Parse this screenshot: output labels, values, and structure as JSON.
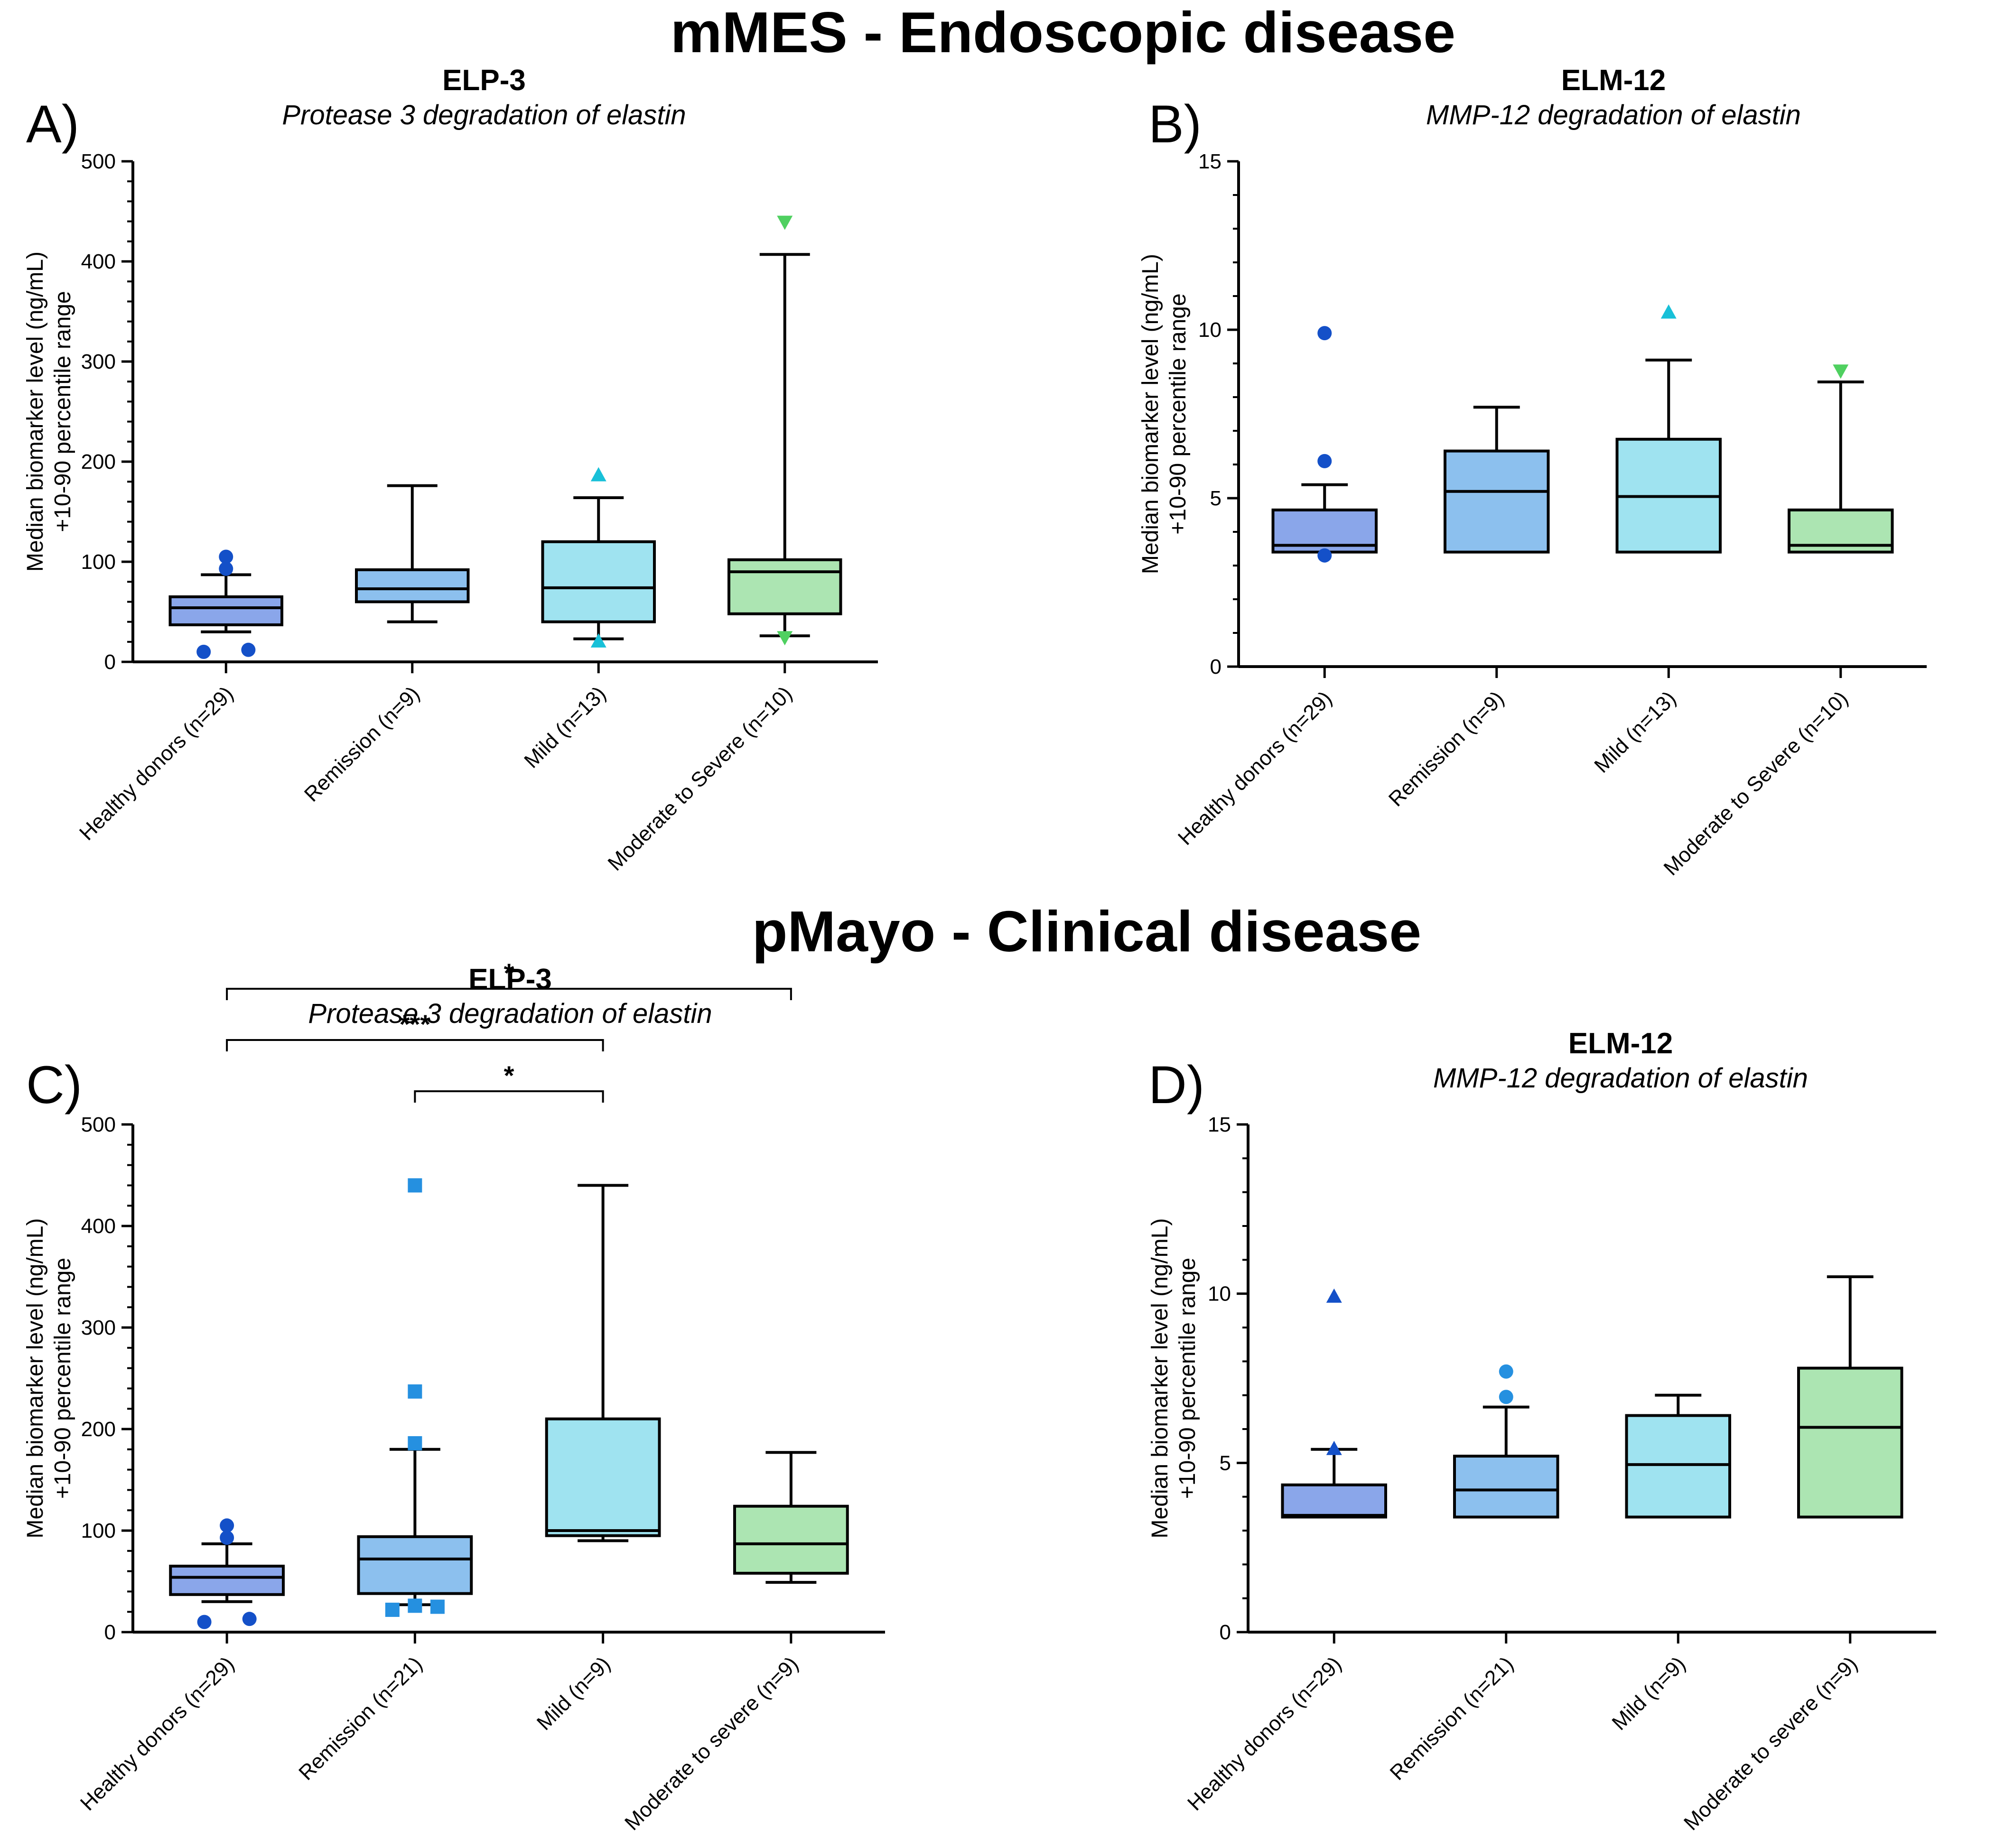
{
  "sections": [
    {
      "title": "mMES - Endoscopic disease"
    },
    {
      "title": "pMayo - Clinical disease"
    }
  ],
  "colors": {
    "healthy": "#8aa6ea",
    "remission": "#8cc0ee",
    "mild": "#9fe3f0",
    "severe": "#ace5b2",
    "dark_blue": "#1450c8",
    "mid_blue": "#2590e0",
    "cyan": "#18c0d8",
    "green": "#4fd060"
  },
  "chart_data": [
    {
      "label": "A)",
      "type": "box",
      "title": "ELP-3",
      "subtitle": "Protease 3 degradation of elastin",
      "ylabel": [
        "Median biomarker level  (ng/mL)",
        "+10-90 percentile range"
      ],
      "ylim": [
        0,
        500
      ],
      "yticks": [
        0,
        100,
        200,
        300,
        400,
        500
      ],
      "categories": [
        "Healthy donors (n=29)",
        "Remission (n=9)",
        "Mild (n=13)",
        "Moderate to Severe (n=10)"
      ],
      "boxes": [
        {
          "color": "healthy",
          "p10": 30,
          "q1": 37,
          "median": 54,
          "q3": 65,
          "p90": 87,
          "outliers": [
            {
              "v": 105,
              "shape": "circle",
              "color": "dark_blue"
            },
            {
              "v": 93,
              "shape": "circle",
              "color": "dark_blue"
            },
            {
              "v": 10,
              "shape": "circle",
              "color": "dark_blue",
              "dx": -0.4
            },
            {
              "v": 12,
              "shape": "circle",
              "color": "dark_blue",
              "dx": 0.4
            }
          ]
        },
        {
          "color": "remission",
          "p10": 40,
          "q1": 60,
          "median": 73,
          "q3": 92,
          "p90": 176,
          "outliers": []
        },
        {
          "color": "mild",
          "p10": 23,
          "q1": 40,
          "median": 74,
          "q3": 120,
          "p90": 164,
          "outliers": [
            {
              "v": 186,
              "shape": "triangle-up",
              "color": "cyan"
            },
            {
              "v": 20,
              "shape": "triangle-up",
              "color": "cyan"
            }
          ]
        },
        {
          "color": "severe",
          "p10": 26,
          "q1": 48,
          "median": 90,
          "q3": 102,
          "p90": 407,
          "outliers": [
            {
              "v": 440,
              "shape": "triangle-down",
              "color": "green"
            },
            {
              "v": 25,
              "shape": "triangle-down",
              "color": "green"
            }
          ]
        }
      ],
      "brackets": []
    },
    {
      "label": "B)",
      "type": "box",
      "title": "ELM-12",
      "subtitle": "MMP-12 degradation of elastin",
      "ylabel": [
        "Median biomarker level  (ng/mL)",
        "+10-90 percentile range"
      ],
      "ylim": [
        0,
        15
      ],
      "yticks": [
        0,
        5,
        10,
        15
      ],
      "categories": [
        "Healthy donors (n=29)",
        "Remission (n=9)",
        "Mild (n=13)",
        "Moderate to Severe (n=10)"
      ],
      "boxes": [
        {
          "color": "healthy",
          "p10": 3.4,
          "q1": 3.4,
          "median": 3.6,
          "q3": 4.65,
          "p90": 5.4,
          "outliers": [
            {
              "v": 9.9,
              "shape": "circle",
              "color": "dark_blue"
            },
            {
              "v": 6.1,
              "shape": "circle",
              "color": "dark_blue"
            },
            {
              "v": 3.3,
              "shape": "circle",
              "color": "dark_blue"
            }
          ]
        },
        {
          "color": "remission",
          "p10": 3.4,
          "q1": 3.4,
          "median": 5.2,
          "q3": 6.4,
          "p90": 7.7,
          "outliers": []
        },
        {
          "color": "mild",
          "p10": 3.4,
          "q1": 3.4,
          "median": 5.05,
          "q3": 6.75,
          "p90": 9.1,
          "outliers": [
            {
              "v": 10.5,
              "shape": "triangle-up",
              "color": "cyan"
            }
          ]
        },
        {
          "color": "severe",
          "p10": 3.4,
          "q1": 3.4,
          "median": 3.6,
          "q3": 4.65,
          "p90": 8.45,
          "outliers": [
            {
              "v": 8.8,
              "shape": "triangle-down",
              "color": "green"
            }
          ]
        }
      ],
      "brackets": []
    },
    {
      "label": "C)",
      "type": "box",
      "title": "ELP-3",
      "subtitle": "Protease 3 degradation of elastin",
      "ylabel": [
        "Median biomarker level  (ng/mL)",
        "+10-90 percentile range"
      ],
      "ylim": [
        0,
        500
      ],
      "yticks": [
        0,
        100,
        200,
        300,
        400,
        500
      ],
      "categories": [
        "Healthy donors (n=29)",
        "Remission (n=21)",
        "Mild (n=9)",
        "Moderate to severe (n=9)"
      ],
      "boxes": [
        {
          "color": "healthy",
          "p10": 30,
          "q1": 37,
          "median": 54,
          "q3": 65,
          "p90": 87,
          "outliers": [
            {
              "v": 105,
              "shape": "circle",
              "color": "dark_blue"
            },
            {
              "v": 93,
              "shape": "circle",
              "color": "dark_blue"
            },
            {
              "v": 10,
              "shape": "circle",
              "color": "dark_blue",
              "dx": -0.4
            },
            {
              "v": 13,
              "shape": "circle",
              "color": "dark_blue",
              "dx": 0.4
            }
          ]
        },
        {
          "color": "remission",
          "p10": 27,
          "q1": 38,
          "median": 72,
          "q3": 94,
          "p90": 180,
          "outliers": [
            {
              "v": 440,
              "shape": "square",
              "color": "mid_blue"
            },
            {
              "v": 237,
              "shape": "square",
              "color": "mid_blue"
            },
            {
              "v": 186,
              "shape": "square",
              "color": "mid_blue"
            },
            {
              "v": 22,
              "shape": "square",
              "color": "mid_blue",
              "dx": -0.4
            },
            {
              "v": 26,
              "shape": "square",
              "color": "mid_blue"
            },
            {
              "v": 25,
              "shape": "square",
              "color": "mid_blue",
              "dx": 0.4
            }
          ]
        },
        {
          "color": "mild",
          "p10": 90,
          "q1": 95,
          "median": 100,
          "q3": 210,
          "p90": 440,
          "outliers": []
        },
        {
          "color": "severe",
          "p10": 49,
          "q1": 58,
          "median": 87,
          "q3": 124,
          "p90": 177,
          "outliers": []
        }
      ],
      "brackets": [
        {
          "from": 1,
          "to": 2,
          "level": 1,
          "label": "*"
        },
        {
          "from": 0,
          "to": 2,
          "level": 2,
          "label": "***"
        },
        {
          "from": 0,
          "to": 3,
          "level": 3,
          "label": "*"
        }
      ]
    },
    {
      "label": "D)",
      "type": "box",
      "title": "ELM-12",
      "subtitle": "MMP-12 degradation of elastin",
      "ylabel": [
        "Median biomarker level  (ng/mL)",
        "+10-90 percentile range"
      ],
      "ylim": [
        0,
        15
      ],
      "yticks": [
        0,
        5,
        10,
        15
      ],
      "categories": [
        "Healthy donors (n=29)",
        "Remission (n=21)",
        "Mild (n=9)",
        "Moderate to severe (n=9)"
      ],
      "boxes": [
        {
          "color": "healthy",
          "p10": 3.4,
          "q1": 3.4,
          "median": 3.45,
          "q3": 4.35,
          "p90": 5.4,
          "outliers": [
            {
              "v": 9.9,
              "shape": "triangle-up",
              "color": "dark_blue"
            },
            {
              "v": 5.4,
              "shape": "triangle-up",
              "color": "dark_blue"
            }
          ]
        },
        {
          "color": "remission",
          "p10": 3.4,
          "q1": 3.4,
          "median": 4.2,
          "q3": 5.2,
          "p90": 6.65,
          "outliers": [
            {
              "v": 7.7,
              "shape": "circle",
              "color": "mid_blue"
            },
            {
              "v": 6.95,
              "shape": "circle",
              "color": "mid_blue"
            }
          ]
        },
        {
          "color": "mild",
          "p10": 3.4,
          "q1": 3.4,
          "median": 4.95,
          "q3": 6.4,
          "p90": 7.0,
          "outliers": []
        },
        {
          "color": "severe",
          "p10": 3.4,
          "q1": 3.4,
          "median": 6.05,
          "q3": 7.8,
          "p90": 10.5,
          "outliers": []
        }
      ],
      "brackets": []
    }
  ]
}
